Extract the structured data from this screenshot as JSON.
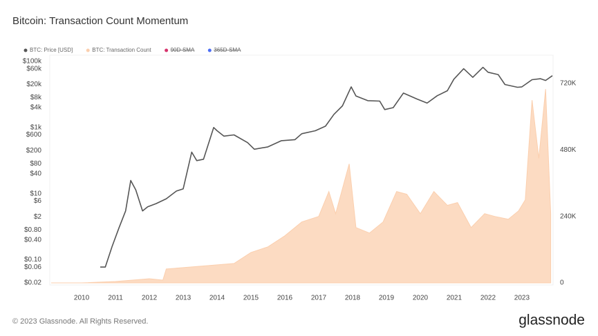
{
  "chart_data": {
    "type": "line",
    "title": "Bitcoin: Transaction Count Momentum",
    "footer": "© 2023 Glassnode. All Rights Reserved.",
    "brand": "glassnode",
    "log_scale": true,
    "xlim": [
      2009.06,
      2023.92
    ],
    "xticks": [
      2010,
      2011,
      2012,
      2013,
      2014,
      2015,
      2016,
      2017,
      2018,
      2019,
      2020,
      2021,
      2022,
      2023
    ],
    "ylim": [
      0.02,
      100000
    ],
    "yticks": [
      {
        "value": 100000,
        "label": "$100k"
      },
      {
        "value": 60000,
        "label": "$60k"
      },
      {
        "value": 20000,
        "label": "$20k"
      },
      {
        "value": 8000,
        "label": "$8k"
      },
      {
        "value": 4000,
        "label": "$4k"
      },
      {
        "value": 1000,
        "label": "$1k"
      },
      {
        "value": 600,
        "label": "$600"
      },
      {
        "value": 200,
        "label": "$200"
      },
      {
        "value": 80,
        "label": "$80"
      },
      {
        "value": 40,
        "label": "$40"
      },
      {
        "value": 10,
        "label": "$10"
      },
      {
        "value": 6,
        "label": "$6"
      },
      {
        "value": 2,
        "label": "$2"
      },
      {
        "value": 0.8,
        "label": "$0.80"
      },
      {
        "value": 0.4,
        "label": "$0.40"
      },
      {
        "value": 0.1,
        "label": "$0.10"
      },
      {
        "value": 0.06,
        "label": "$0.06"
      },
      {
        "value": 0.02,
        "label": "$0.02"
      }
    ],
    "y2lim": [
      0,
      800000
    ],
    "y2ticks": [
      0,
      {
        "value": 240000,
        "label": "240K"
      },
      {
        "value": 480000,
        "label": "480K"
      },
      {
        "value": 720000,
        "label": "720K"
      }
    ],
    "series": [
      {
        "name": "BTC: Price [USD]",
        "color": "#555555",
        "visible": true,
        "x": [
          2010.55,
          2010.7,
          2010.9,
          2011.1,
          2011.3,
          2011.45,
          2011.6,
          2011.8,
          2011.95,
          2012.2,
          2012.5,
          2012.8,
          2013.0,
          2013.25,
          2013.4,
          2013.6,
          2013.9,
          2014.0,
          2014.2,
          2014.5,
          2014.9,
          2015.1,
          2015.5,
          2015.9,
          2016.3,
          2016.5,
          2016.9,
          2017.2,
          2017.45,
          2017.7,
          2017.96,
          2018.1,
          2018.45,
          2018.8,
          2018.95,
          2019.2,
          2019.5,
          2019.9,
          2020.2,
          2020.5,
          2020.8,
          2020.99,
          2021.28,
          2021.55,
          2021.85,
          2022.0,
          2022.3,
          2022.5,
          2022.87,
          2023.0,
          2023.3,
          2023.55,
          2023.7,
          2023.9
        ],
        "values": [
          0.06,
          0.06,
          0.25,
          0.9,
          3,
          25,
          13,
          3,
          4,
          5,
          7,
          12,
          14,
          180,
          100,
          110,
          1000,
          800,
          550,
          600,
          350,
          220,
          260,
          400,
          430,
          650,
          800,
          1100,
          2500,
          4500,
          17000,
          9000,
          6500,
          6300,
          3500,
          4000,
          11000,
          7300,
          5500,
          9200,
          13000,
          29000,
          60000,
          33000,
          66000,
          47000,
          40000,
          20000,
          16500,
          17000,
          28000,
          30000,
          26500,
          37000
        ]
      },
      {
        "name": "BTC: Transaction Count",
        "color": "#fbcfae",
        "axis": "y2",
        "visible": true,
        "x": [
          2009.1,
          2010,
          2011,
          2012,
          2012.4,
          2012.5,
          2013,
          2013.5,
          2014,
          2014.5,
          2015,
          2015.5,
          2016,
          2016.5,
          2017,
          2017.3,
          2017.5,
          2017.9,
          2018.1,
          2018.5,
          2018.9,
          2019.3,
          2019.6,
          2020.0,
          2020.4,
          2020.8,
          2021.1,
          2021.5,
          2021.9,
          2022.2,
          2022.6,
          2022.9,
          2023.1,
          2023.3,
          2023.5,
          2023.7,
          2023.85
        ],
        "values": [
          0,
          0,
          5000,
          15000,
          10000,
          50000,
          55000,
          60000,
          65000,
          70000,
          110000,
          130000,
          170000,
          220000,
          240000,
          330000,
          250000,
          430000,
          200000,
          180000,
          220000,
          330000,
          320000,
          250000,
          330000,
          280000,
          290000,
          200000,
          250000,
          240000,
          230000,
          260000,
          300000,
          660000,
          450000,
          700000,
          250000
        ]
      },
      {
        "name": "90D-SMA",
        "color": "#d6336c",
        "visible": false
      },
      {
        "name": "365D-SMA",
        "color": "#4c6ef5",
        "visible": false
      }
    ]
  }
}
